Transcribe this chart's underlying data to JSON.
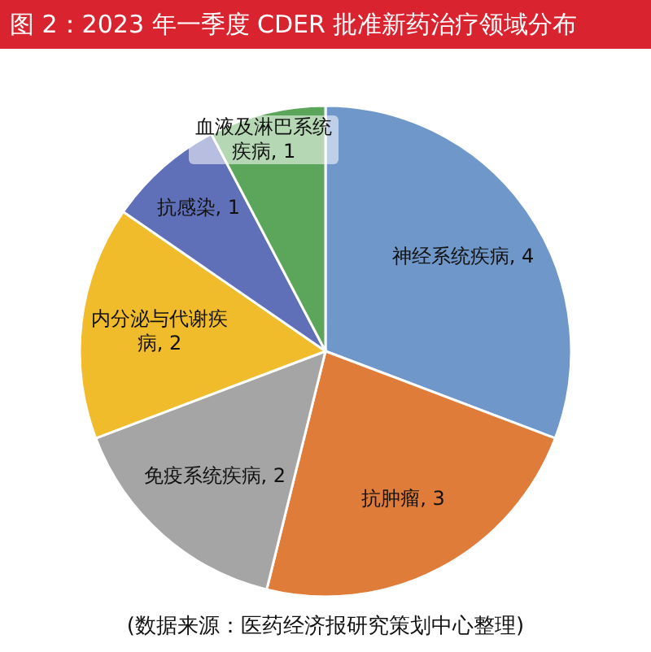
{
  "chart_data": {
    "type": "pie",
    "title": "图 2：2023 年一季度 CDER 批准新药治疗领域分布",
    "categories": [
      "神经系统疾病",
      "抗肿瘤",
      "免疫系统疾病",
      "内分泌与代谢疾病",
      "抗感染",
      "血液及淋巴系统疾病"
    ],
    "values": [
      4,
      3,
      2,
      2,
      1,
      1
    ],
    "colors": [
      "#6f97c9",
      "#e07c3a",
      "#a5a5a5",
      "#f1bc2b",
      "#5f6fb8",
      "#5ba65a"
    ],
    "value_labels": [
      ", 4",
      ", 3",
      ", 2",
      ", 2",
      ", 1",
      ", 1"
    ],
    "annotations": [
      "(数据来源：医药经济报研究策划中心整理)"
    ]
  }
}
